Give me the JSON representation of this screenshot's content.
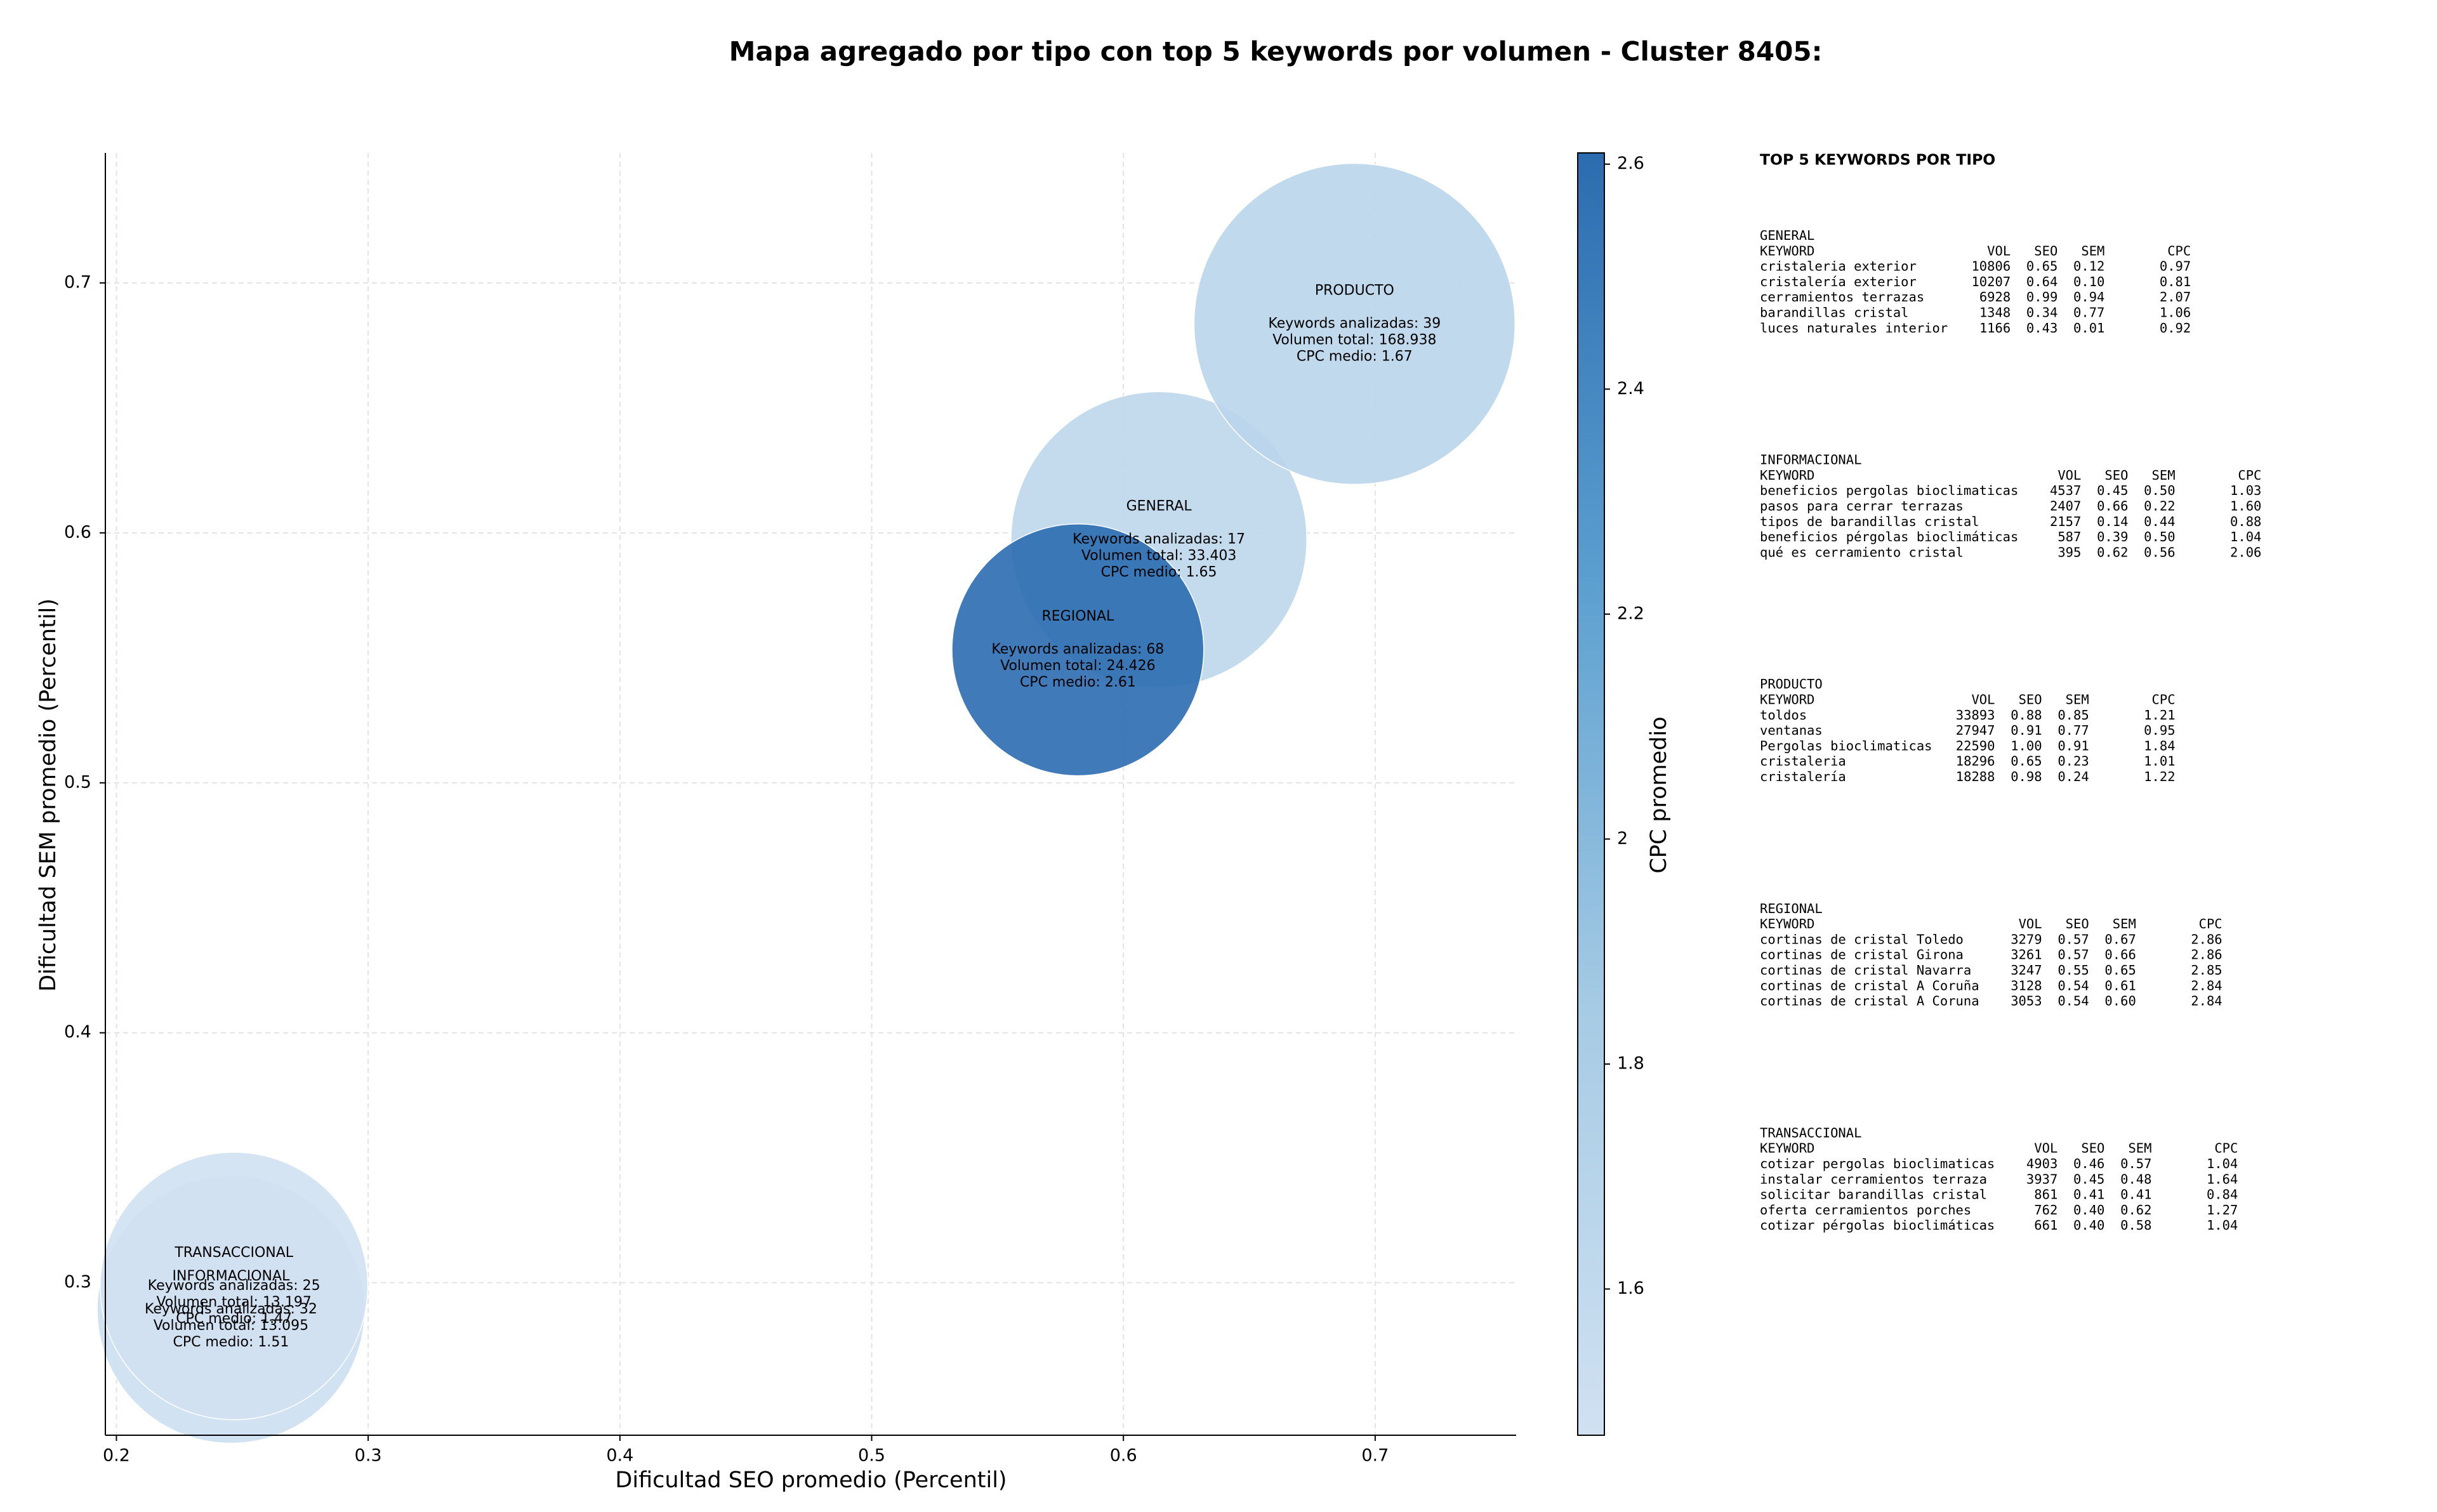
{
  "chart_data": {
    "type": "scatter",
    "title": "Mapa agregado por tipo con top 5 keywords por volumen - Cluster 8405:",
    "x_label": "Dificultad SEO promedio (Percentil)",
    "y_label": "Dificultad SEM promedio (Percentil)",
    "colorbar_label": "CPC promedio",
    "categories": [
      "GENERAL",
      "INFORMACIONAL",
      "PRODUCTO",
      "REGIONAL",
      "TRANSACCIONAL"
    ],
    "x": [
      0.6141,
      0.2455,
      0.6918,
      0.5819,
      0.2467
    ],
    "y": [
      0.5973,
      0.2893,
      0.6836,
      0.5532,
      0.2987
    ],
    "sizes": [
      8836,
      7225,
      10404,
      6400,
      7225
    ],
    "cpc": [
      1.65,
      1.51,
      1.67,
      2.61,
      1.47
    ],
    "annotations": [
      [
        "Keywords analizadas: 17",
        "Volumen total: 33.403",
        "CPC medio: 1.65"
      ],
      [
        "Keywords analizadas: 32",
        "Volumen total: 13.095",
        "CPC medio: 1.51"
      ],
      [
        "Keywords analizadas: 39",
        "Volumen total: 168.938",
        "CPC medio: 1.67"
      ],
      [
        "Keywords analizadas: 68",
        "Volumen total: 24.426",
        "CPC medio: 2.61"
      ],
      [
        "Keywords analizadas: 25",
        "Volumen total: 13.197",
        "CPC medio: 1.47"
      ]
    ],
    "xlim": [
      0.1956,
      0.756
    ],
    "ylim": [
      0.239,
      0.752
    ],
    "xticks": [
      0.2,
      0.3,
      0.4,
      0.5,
      0.6,
      0.7
    ],
    "yticks": [
      0.3,
      0.4,
      0.5,
      0.6,
      0.7
    ],
    "clim": [
      1.47,
      2.61
    ],
    "cticks": [
      1.6,
      1.8,
      2.0,
      2.2,
      2.4,
      2.6
    ],
    "colormap": [
      "#d0e1f2",
      "#a6cbe4",
      "#5b9fd0",
      "#2b6cb0"
    ],
    "grid": true
  },
  "side_panel": {
    "title": "TOP 5 KEYWORDS POR TIPO",
    "groups": [
      {
        "name": "GENERAL",
        "header": [
          "KEYWORD",
          "VOL",
          "SEO",
          "SEM",
          "CPC"
        ],
        "rows": [
          [
            "cristaleria exterior",
            "10806",
            "0.65",
            "0.12",
            "0.97"
          ],
          [
            "cristalería exterior",
            "10207",
            "0.64",
            "0.10",
            "0.81"
          ],
          [
            "cerramientos terrazas",
            "6928",
            "0.99",
            "0.94",
            "2.07"
          ],
          [
            "barandillas cristal",
            "1348",
            "0.34",
            "0.77",
            "1.06"
          ],
          [
            "luces naturales interior",
            "1166",
            "0.43",
            "0.01",
            "0.92"
          ]
        ]
      },
      {
        "name": "INFORMACIONAL",
        "header": [
          "KEYWORD",
          "VOL",
          "SEO",
          "SEM",
          "CPC"
        ],
        "rows": [
          [
            "beneficios pergolas bioclimaticas",
            "4537",
            "0.45",
            "0.50",
            "1.03"
          ],
          [
            "pasos para cerrar terrazas",
            "2407",
            "0.66",
            "0.22",
            "1.60"
          ],
          [
            "tipos de barandillas cristal",
            "2157",
            "0.14",
            "0.44",
            "0.88"
          ],
          [
            "beneficios pérgolas bioclimáticas",
            "587",
            "0.39",
            "0.50",
            "1.04"
          ],
          [
            "qué es cerramiento cristal",
            "395",
            "0.62",
            "0.56",
            "2.06"
          ]
        ]
      },
      {
        "name": "PRODUCTO",
        "header": [
          "KEYWORD",
          "VOL",
          "SEO",
          "SEM",
          "CPC"
        ],
        "rows": [
          [
            "toldos",
            "33893",
            "0.88",
            "0.85",
            "1.21"
          ],
          [
            "ventanas",
            "27947",
            "0.91",
            "0.77",
            "0.95"
          ],
          [
            "Pergolas bioclimaticas",
            "22590",
            "1.00",
            "0.91",
            "1.84"
          ],
          [
            "cristaleria",
            "18296",
            "0.65",
            "0.23",
            "1.01"
          ],
          [
            "cristalería",
            "18288",
            "0.98",
            "0.24",
            "1.22"
          ]
        ]
      },
      {
        "name": "REGIONAL",
        "header": [
          "KEYWORD",
          "VOL",
          "SEO",
          "SEM",
          "CPC"
        ],
        "rows": [
          [
            "cortinas de cristal Toledo",
            "3279",
            "0.57",
            "0.67",
            "2.86"
          ],
          [
            "cortinas de cristal Girona",
            "3261",
            "0.57",
            "0.66",
            "2.86"
          ],
          [
            "cortinas de cristal Navarra",
            "3247",
            "0.55",
            "0.65",
            "2.85"
          ],
          [
            "cortinas de cristal A Coruña",
            "3128",
            "0.54",
            "0.61",
            "2.84"
          ],
          [
            "cortinas de cristal A Coruna",
            "3053",
            "0.54",
            "0.60",
            "2.84"
          ]
        ]
      },
      {
        "name": "TRANSACCIONAL",
        "header": [
          "KEYWORD",
          "VOL",
          "SEO",
          "SEM",
          "CPC"
        ],
        "rows": [
          [
            "cotizar pergolas bioclimaticas",
            "4903",
            "0.46",
            "0.57",
            "1.04"
          ],
          [
            "instalar cerramientos terraza",
            "3937",
            "0.45",
            "0.48",
            "1.64"
          ],
          [
            "solicitar barandillas cristal",
            "861",
            "0.41",
            "0.41",
            "0.84"
          ],
          [
            "oferta cerramientos porches",
            "762",
            "0.40",
            "0.62",
            "1.27"
          ],
          [
            "cotizar pérgolas bioclimáticas",
            "661",
            "0.40",
            "0.58",
            "1.04"
          ]
        ]
      }
    ]
  }
}
